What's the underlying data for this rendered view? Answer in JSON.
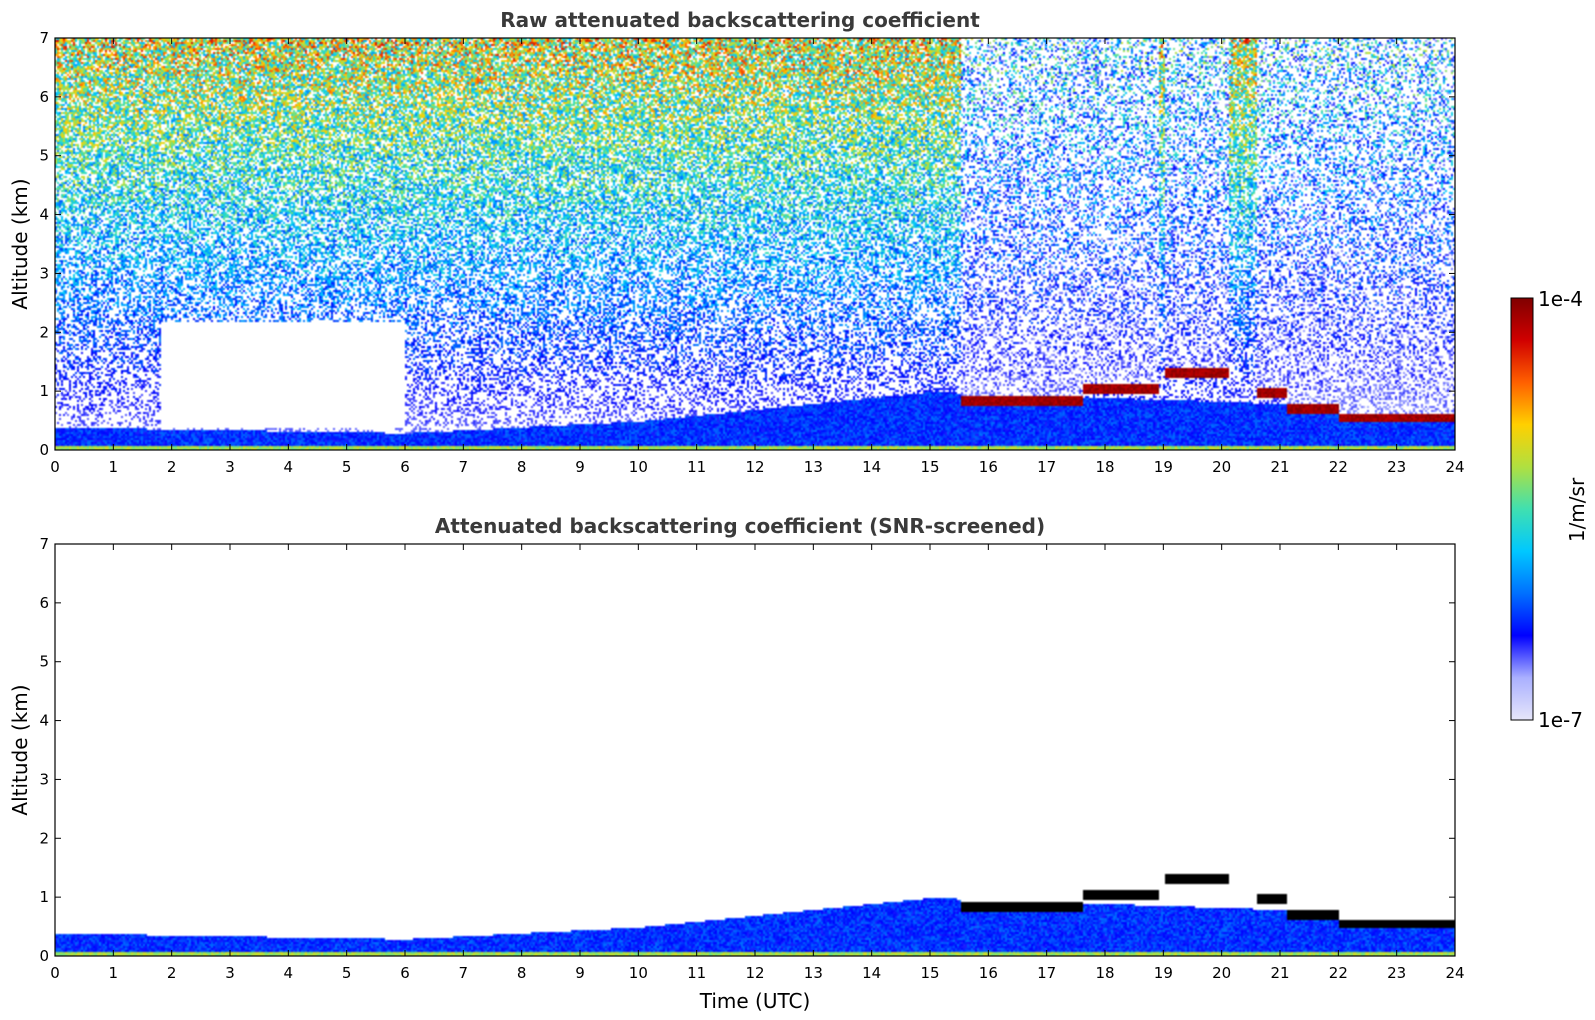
{
  "chart_data": [
    {
      "type": "heatmap",
      "title": "Raw attenuated backscattering coefficient",
      "xlabel": "",
      "ylabel": "Altitude (km)",
      "xlim": [
        0,
        24
      ],
      "ylim": [
        0,
        7
      ],
      "x_ticks": [
        "0",
        "1",
        "2",
        "3",
        "4",
        "5",
        "6",
        "7",
        "8",
        "9",
        "10",
        "11",
        "12",
        "13",
        "14",
        "15",
        "16",
        "17",
        "18",
        "19",
        "20",
        "21",
        "22",
        "23",
        "24"
      ],
      "y_ticks": [
        "0",
        "1",
        "2",
        "3",
        "4",
        "5",
        "6",
        "7"
      ],
      "screened": false,
      "cloud_layers": [
        {
          "t_start": 15.5,
          "t_end": 17.6,
          "alt_km": 0.85
        },
        {
          "t_start": 17.6,
          "t_end": 18.9,
          "alt_km": 1.05
        },
        {
          "t_start": 19.0,
          "t_end": 20.1,
          "alt_km": 1.33
        },
        {
          "t_start": 20.6,
          "t_end": 21.1,
          "alt_km": 0.98
        },
        {
          "t_start": 21.1,
          "t_end": 22.0,
          "alt_km": 0.72
        },
        {
          "t_start": 22.0,
          "t_end": 24.0,
          "alt_km": 0.56
        }
      ],
      "boundary_layer_top_km": [
        {
          "t": 0,
          "alt_km": 0.4
        },
        {
          "t": 6,
          "alt_km": 0.3
        },
        {
          "t": 10,
          "alt_km": 0.5
        },
        {
          "t": 14,
          "alt_km": 0.9
        },
        {
          "t": 15,
          "alt_km": 1.0
        },
        {
          "t": 24,
          "alt_km": 0.7
        }
      ]
    },
    {
      "type": "heatmap",
      "title": "Attenuated backscattering coefficient (SNR-screened)",
      "xlabel": "Time (UTC)",
      "ylabel": "Altitude (km)",
      "xlim": [
        0,
        24
      ],
      "ylim": [
        0,
        7
      ],
      "x_ticks": [
        "0",
        "1",
        "2",
        "3",
        "4",
        "5",
        "6",
        "7",
        "8",
        "9",
        "10",
        "11",
        "12",
        "13",
        "14",
        "15",
        "16",
        "17",
        "18",
        "19",
        "20",
        "21",
        "22",
        "23",
        "24"
      ],
      "y_ticks": [
        "0",
        "1",
        "2",
        "3",
        "4",
        "5",
        "6",
        "7"
      ],
      "screened": true
    }
  ],
  "colorbar": {
    "label": "1/m/sr",
    "max_label": "1e-4",
    "min_label": "1e-7",
    "scale": "log",
    "colormap": "jet",
    "colors": [
      "#e6e6fa",
      "#aab0ff",
      "#0000ff",
      "#0070ff",
      "#00c8ff",
      "#40e0b0",
      "#b0e040",
      "#ffd000",
      "#ff6000",
      "#d00000",
      "#800000"
    ]
  }
}
